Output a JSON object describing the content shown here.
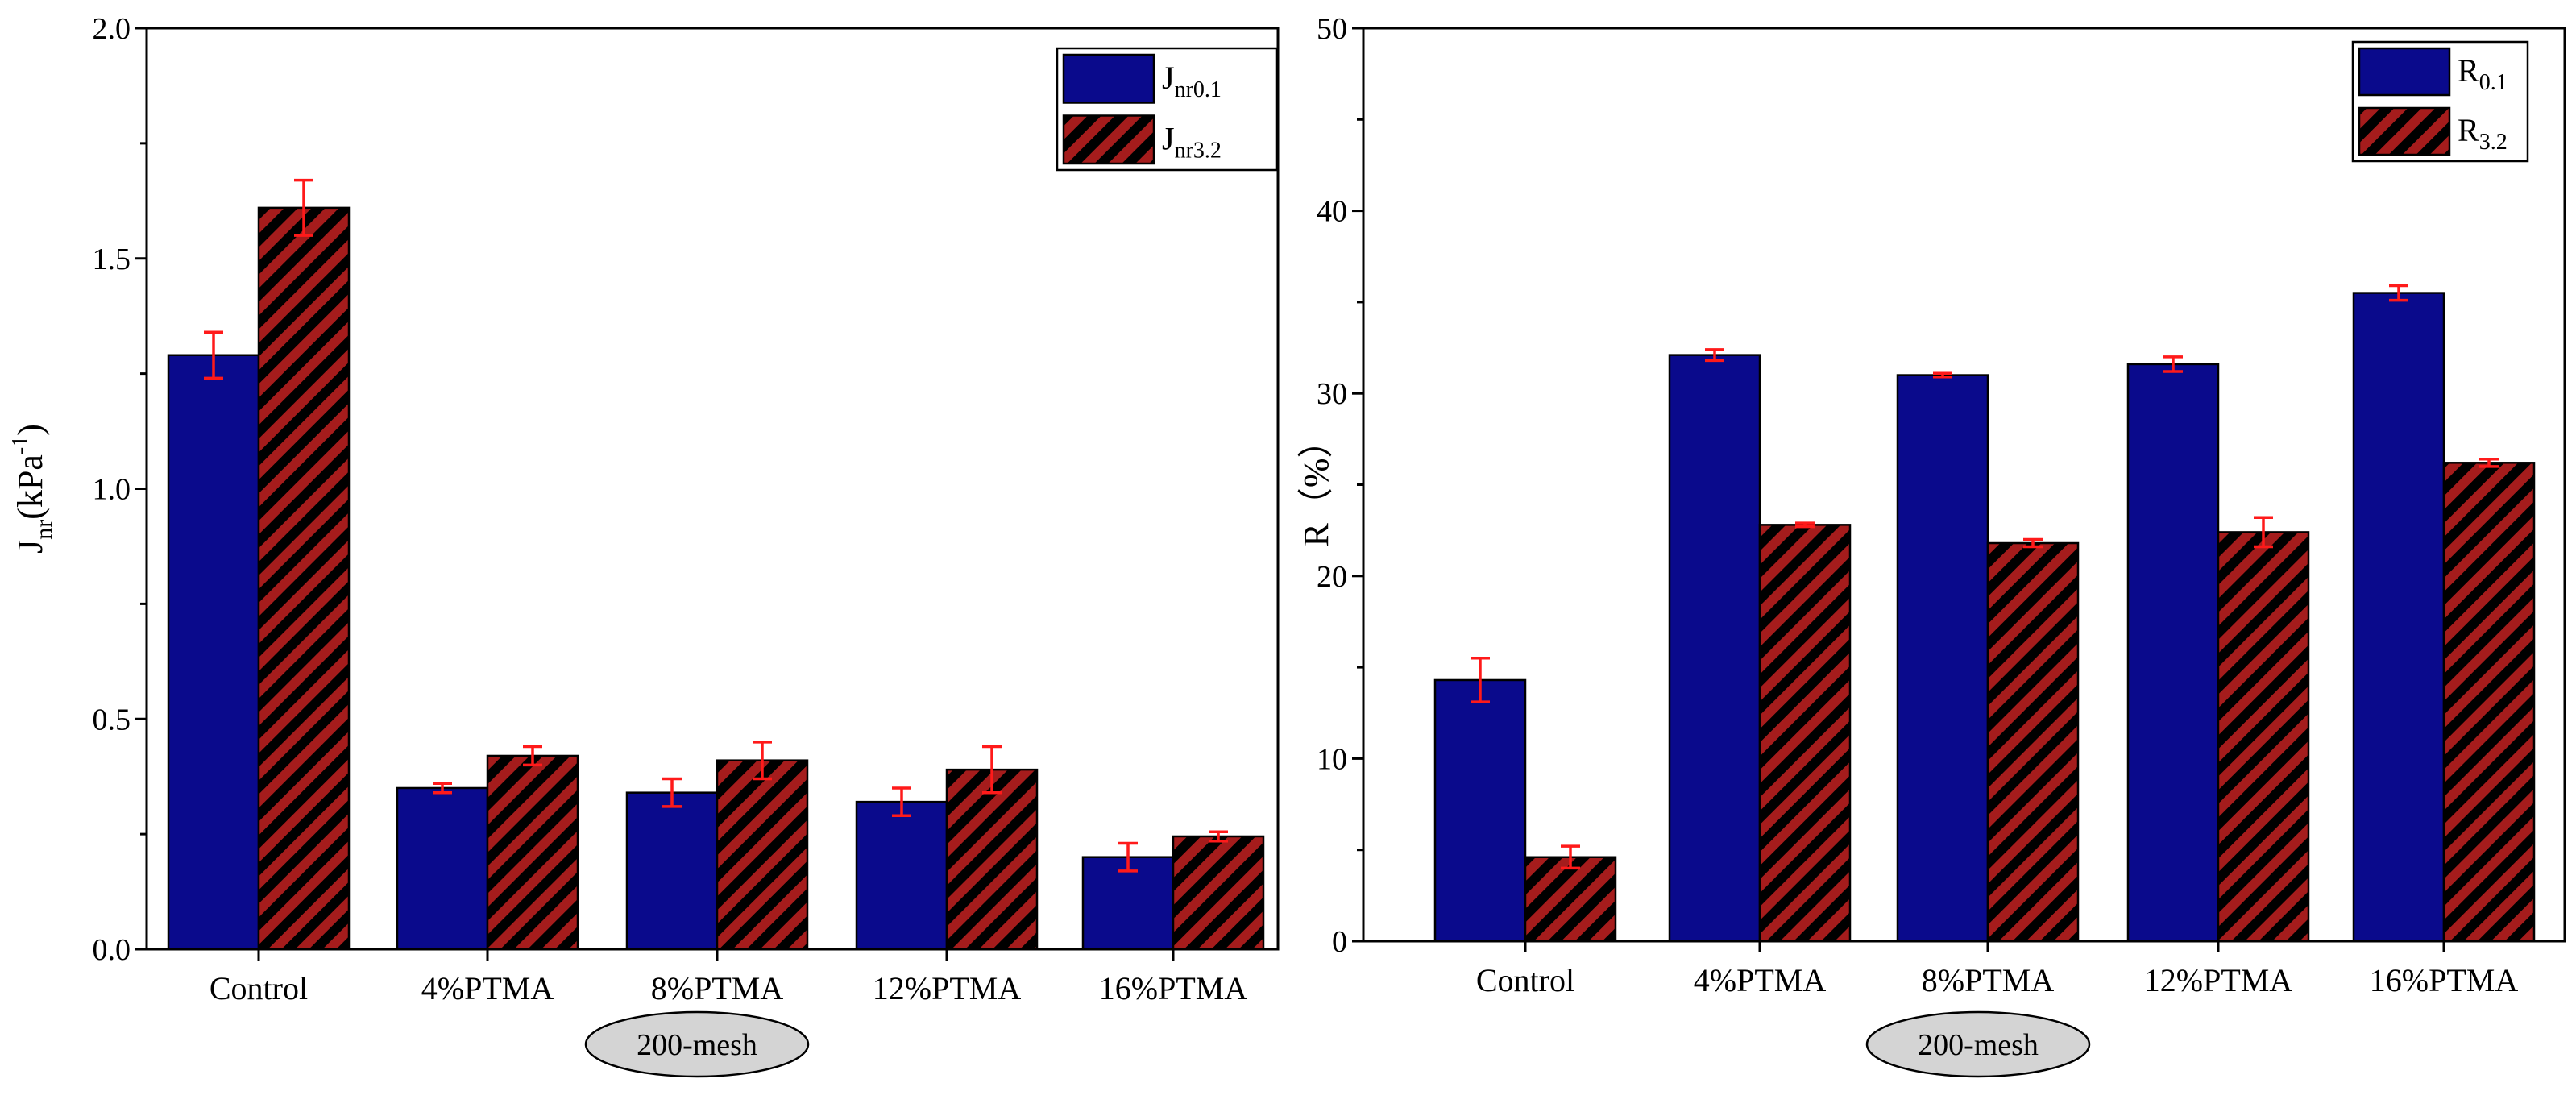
{
  "colors": {
    "bar_primary": "#0a0a8c",
    "hatch_bg": "#a51c1c",
    "hatch_stripe": "#000000",
    "error_bar": "#ff1a1a",
    "badge_fill": "#d4d4d4"
  },
  "chart_data": [
    {
      "type": "bar",
      "categories": [
        "Control",
        "4%PTMA",
        "8%PTMA",
        "12%PTMA",
        "16%PTMA"
      ],
      "series": [
        {
          "name": "Jnr0.1",
          "label_main": "J",
          "label_sub": "nr0.1",
          "pattern": "solid",
          "values": [
            1.29,
            0.35,
            0.34,
            0.32,
            0.2
          ],
          "errors": [
            0.05,
            0.01,
            0.03,
            0.03,
            0.03
          ]
        },
        {
          "name": "Jnr3.2",
          "label_main": "J",
          "label_sub": "nr3.2",
          "pattern": "hatched",
          "values": [
            1.61,
            0.42,
            0.41,
            0.39,
            0.245
          ],
          "errors": [
            0.06,
            0.02,
            0.04,
            0.05,
            0.01
          ]
        }
      ],
      "title": "",
      "ylabel": {
        "main": "J",
        "sub": "nr",
        "unit_pre": "(kPa",
        "unit_sup": "-1",
        "unit_post": ")"
      },
      "ylim": [
        0,
        2.0
      ],
      "yticks": [
        "0.0",
        "0.5",
        "1.0",
        "1.5",
        "2.0"
      ],
      "group_annotation": "200-mesh",
      "legend_position": "top-right",
      "grid": false
    },
    {
      "type": "bar",
      "categories": [
        "Control",
        "4%PTMA",
        "8%PTMA",
        "12%PTMA",
        "16%PTMA"
      ],
      "series": [
        {
          "name": "R0.1",
          "label_main": "R",
          "label_sub": "0.1",
          "pattern": "solid",
          "values": [
            14.3,
            32.1,
            31.0,
            31.6,
            35.5
          ],
          "errors": [
            1.2,
            0.3,
            0.1,
            0.4,
            0.4
          ]
        },
        {
          "name": "R3.2",
          "label_main": "R",
          "label_sub": "3.2",
          "pattern": "hatched",
          "values": [
            4.6,
            22.8,
            21.8,
            22.4,
            26.2
          ],
          "errors": [
            0.6,
            0.1,
            0.2,
            0.8,
            0.2
          ]
        }
      ],
      "title": "",
      "ylabel": {
        "main": "R（%）"
      },
      "ylim": [
        0,
        50
      ],
      "yticks": [
        "0",
        "10",
        "20",
        "30",
        "40",
        "50"
      ],
      "group_annotation": "200-mesh",
      "legend_position": "top-right",
      "grid": false
    }
  ]
}
